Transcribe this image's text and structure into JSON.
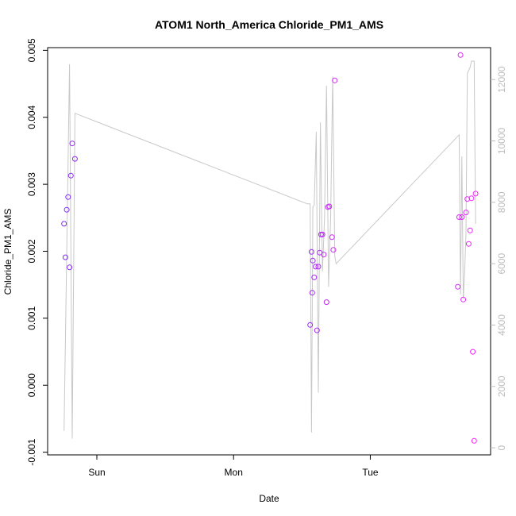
{
  "chart_data": {
    "type": "scatter",
    "title": "ATOM1 North_America Chloride_PM1_AMS",
    "xlabel": "Date",
    "ylabel": "Chloride_PM1_AMS",
    "x_unit": "days",
    "x_ticks": [
      {
        "value": 1,
        "label": "Sun"
      },
      {
        "value": 2,
        "label": "Mon"
      },
      {
        "value": 3,
        "label": "Tue"
      }
    ],
    "xlim": [
      0.64,
      3.88
    ],
    "ylim": [
      -0.00104,
      0.00504
    ],
    "y_ticks": [
      {
        "value": -0.001,
        "label": "-0.001"
      },
      {
        "value": 0.0,
        "label": "0.000"
      },
      {
        "value": 0.001,
        "label": "0.001"
      },
      {
        "value": 0.002,
        "label": "0.002"
      },
      {
        "value": 0.003,
        "label": "0.003"
      },
      {
        "value": 0.004,
        "label": "0.004"
      },
      {
        "value": 0.005,
        "label": "0.005"
      }
    ],
    "y2lim": [
      -230,
      13040
    ],
    "y2_ticks": [
      {
        "value": 0,
        "label": "0"
      },
      {
        "value": 2000,
        "label": "2000"
      },
      {
        "value": 4000,
        "label": "4000"
      },
      {
        "value": 6000,
        "label": "6000"
      },
      {
        "value": 8000,
        "label": "8000"
      },
      {
        "value": 10000,
        "label": "10000"
      },
      {
        "value": 12000,
        "label": "12000"
      }
    ],
    "series": [
      {
        "kind": "points",
        "color_start": "#7b2cf0",
        "color_end": "#ff22ff",
        "points": [
          [
            0.76,
            0.00241
          ],
          [
            0.77,
            0.00191
          ],
          [
            0.78,
            0.00262
          ],
          [
            0.79,
            0.00281
          ],
          [
            0.8,
            0.00176
          ],
          [
            0.81,
            0.00313
          ],
          [
            0.82,
            0.00361
          ],
          [
            0.84,
            0.00338
          ],
          [
            2.56,
            0.0009
          ],
          [
            2.57,
            0.00199
          ],
          [
            2.575,
            0.00138
          ],
          [
            2.58,
            0.00186
          ],
          [
            2.59,
            0.00161
          ],
          [
            2.6,
            0.00177
          ],
          [
            2.61,
            0.00082
          ],
          [
            2.62,
            0.00177
          ],
          [
            2.63,
            0.00198
          ],
          [
            2.64,
            0.00225
          ],
          [
            2.65,
            0.00225
          ],
          [
            2.66,
            0.00195
          ],
          [
            2.68,
            0.00124
          ],
          [
            2.69,
            0.00266
          ],
          [
            2.7,
            0.00267
          ],
          [
            2.72,
            0.00221
          ],
          [
            2.73,
            0.00202
          ],
          [
            2.74,
            0.00455
          ],
          [
            3.64,
            0.00147
          ],
          [
            3.65,
            0.00251
          ],
          [
            3.66,
            0.00493
          ],
          [
            3.67,
            0.00251
          ],
          [
            3.68,
            0.00128
          ],
          [
            3.7,
            0.00258
          ],
          [
            3.71,
            0.00278
          ],
          [
            3.72,
            0.00211
          ],
          [
            3.73,
            0.00231
          ],
          [
            3.74,
            0.00279
          ],
          [
            3.75,
            0.0005
          ],
          [
            3.76,
            -0.00083
          ],
          [
            3.77,
            0.00286
          ]
        ]
      },
      {
        "kind": "line",
        "axis": "right",
        "color": "#c8c8c8",
        "points": [
          [
            0.76,
            550
          ],
          [
            0.8,
            12500
          ],
          [
            0.82,
            300
          ],
          [
            0.84,
            10900
          ],
          [
            2.54,
            7950
          ],
          [
            2.56,
            7950
          ],
          [
            2.57,
            500
          ],
          [
            2.58,
            7850
          ],
          [
            2.59,
            7900
          ],
          [
            2.605,
            10300
          ],
          [
            2.62,
            1800
          ],
          [
            2.635,
            10600
          ],
          [
            2.65,
            5750
          ],
          [
            2.665,
            7500
          ],
          [
            2.68,
            11800
          ],
          [
            2.695,
            5250
          ],
          [
            2.71,
            7500
          ],
          [
            2.725,
            12100
          ],
          [
            2.74,
            6250
          ],
          [
            2.75,
            6000
          ],
          [
            3.65,
            10200
          ],
          [
            3.66,
            5000
          ],
          [
            3.67,
            9500
          ],
          [
            3.68,
            4850
          ],
          [
            3.69,
            5700
          ],
          [
            3.7,
            7000
          ],
          [
            3.71,
            12200
          ],
          [
            3.73,
            12400
          ],
          [
            3.74,
            12600
          ],
          [
            3.76,
            12600
          ],
          [
            3.77,
            7300
          ]
        ]
      }
    ]
  }
}
